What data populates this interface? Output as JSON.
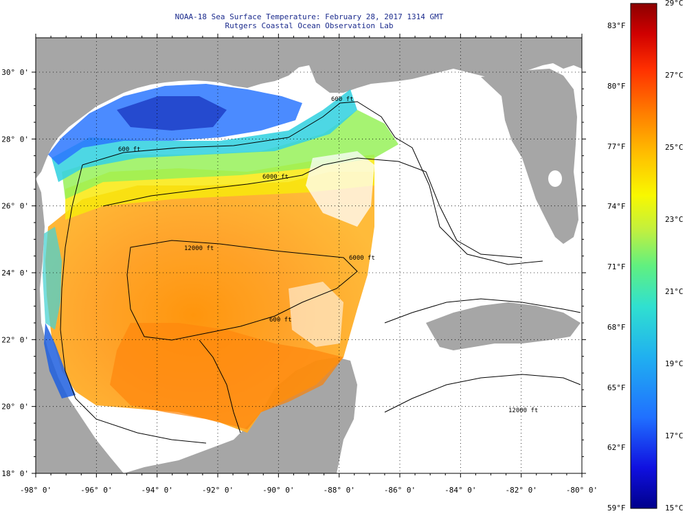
{
  "header": {
    "title": "NOAA-18 Sea Surface Temperature:  February 28, 2017 1314 GMT",
    "subtitle": "Rutgers Coastal Ocean Observation Lab"
  },
  "axes": {
    "lon_ticks": [
      "-98° 0'",
      "-96° 0'",
      "-94° 0'",
      "-92° 0'",
      "-90° 0'",
      "-88° 0'",
      "-86° 0'",
      "-84° 0'",
      "-82° 0'",
      "-80° 0'"
    ],
    "lat_ticks": [
      "30° 0'",
      "28° 0'",
      "26° 0'",
      "24° 0'",
      "22° 0'",
      "20° 0'",
      "18° 0'"
    ]
  },
  "contours": [
    "600 ft",
    "6000 ft",
    "12000 ft"
  ],
  "colorbar": {
    "fahrenheit": [
      "83°F",
      "80°F",
      "77°F",
      "74°F",
      "71°F",
      "68°F",
      "65°F",
      "62°F",
      "59°F"
    ],
    "celsius": [
      "29°C",
      "27°C",
      "25°C",
      "23°C",
      "21°C",
      "19°C",
      "17°C",
      "15°C"
    ]
  },
  "colors": {
    "land": "#a6a6a6",
    "no_data": "#ffffff",
    "title": "#1a2a8c",
    "scale": [
      "#00008b",
      "#1010e0",
      "#2070ff",
      "#20b0f0",
      "#30e0d0",
      "#60f080",
      "#c0f040",
      "#f8f800",
      "#ffc000",
      "#ff8000",
      "#ff3000",
      "#d00000",
      "#8b0000"
    ]
  }
}
